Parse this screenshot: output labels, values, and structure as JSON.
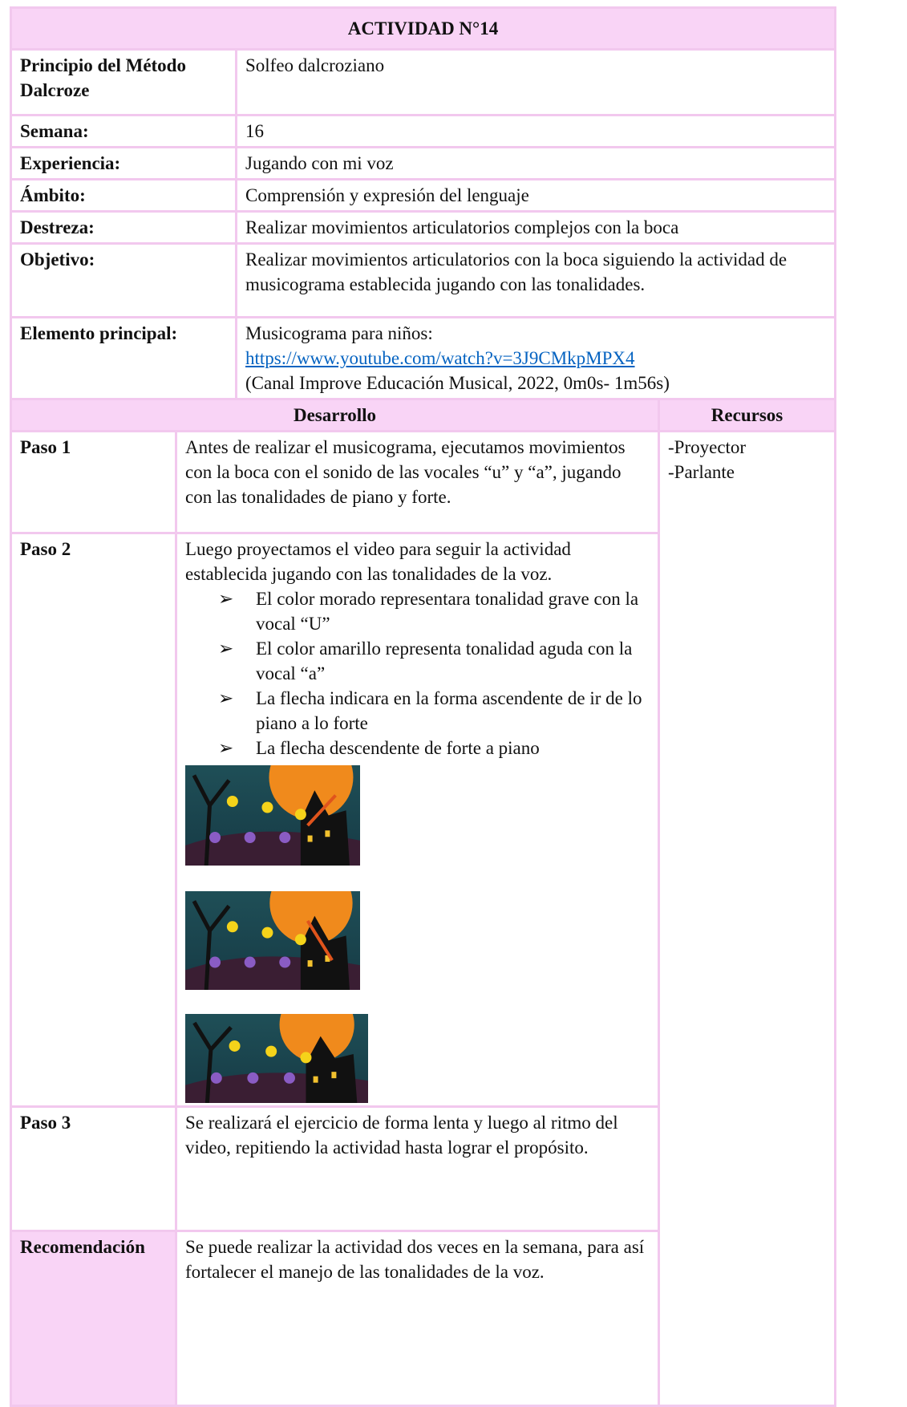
{
  "title": "ACTIVIDAD N°14",
  "info": [
    {
      "label": "Principio del Método Dalcroze",
      "value": [
        "Solfeo dalcroziano"
      ]
    },
    {
      "label": "Semana:",
      "value": [
        "16"
      ]
    },
    {
      "label": "Experiencia:",
      "value": [
        "Jugando con mi voz"
      ]
    },
    {
      "label": "Ámbito:",
      "value": [
        "Comprensión y expresión del lenguaje"
      ]
    },
    {
      "label": "Destreza:",
      "value": [
        "Realizar movimientos articulatorios complejos con la boca"
      ]
    },
    {
      "label": "Objetivo:",
      "value": [
        "Realizar movimientos articulatorios con la boca siguiendo la actividad de musicograma establecida jugando con las tonalidades."
      ]
    },
    {
      "label": "Elemento principal:",
      "value": [
        "Musicograma para niños:",
        "https://www.youtube.com/watch?v=3J9CMkpMPX4",
        "(Canal Improve Educación Musical, 2022, 0m0s- 1m56s)"
      ]
    }
  ],
  "development_header": "Desarrollo",
  "resources_header": "Recursos",
  "resources": [
    "-Proyector",
    "-Parlante"
  ],
  "steps": [
    {
      "label": "Paso 1",
      "text": "Antes de realizar el musicograma, ejecutamos movimientos con la boca con el sonido de las vocales “u” y “a”, jugando con las tonalidades de piano y forte."
    },
    {
      "label": "Paso 2",
      "text": "Luego proyectamos el video para seguir la actividad establecida jugando con las tonalidades de la voz.",
      "bullets": [
        "El color morado representara tonalidad grave con la vocal “U”",
        "El color amarillo representa tonalidad aguda con la vocal “a”",
        "La flecha indicara en la forma ascendente de ir de lo piano a lo forte",
        "La flecha descendente de forte a piano"
      ]
    },
    {
      "label": "Paso 3",
      "text": "Se realizará el ejercicio de forma lenta y luego al ritmo del video, repitiendo la actividad hasta lograr el propósito."
    },
    {
      "label": "Recomendación",
      "text": "Se puede realizar la actividad dos veces en la semana, para así fortalecer el manejo de las tonalidades de la voz."
    }
  ]
}
